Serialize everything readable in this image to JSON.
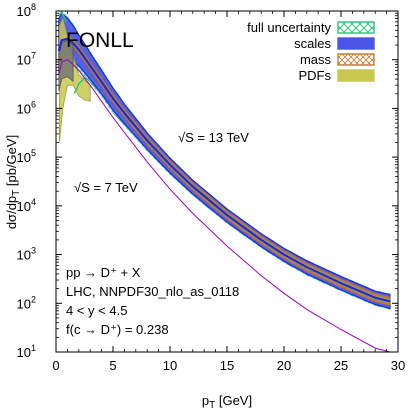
{
  "chart_data": {
    "type": "line",
    "title": "FONLL",
    "xlabel": "p_T [GeV]",
    "ylabel": "dσ/dp_T [pb/GeV]",
    "xlim": [
      0,
      30
    ],
    "ylim": [
      10,
      100000000
    ],
    "yscale": "log",
    "grid": false,
    "legend_position": "top-right",
    "x_ticks": [
      "0",
      "5",
      "10",
      "15",
      "20",
      "25",
      "30"
    ],
    "y_ticks": [
      {
        "base": "10",
        "exp": "1"
      },
      {
        "base": "10",
        "exp": "2"
      },
      {
        "base": "10",
        "exp": "3"
      },
      {
        "base": "10",
        "exp": "4"
      },
      {
        "base": "10",
        "exp": "5"
      },
      {
        "base": "10",
        "exp": "6"
      },
      {
        "base": "10",
        "exp": "7"
      },
      {
        "base": "10",
        "exp": "8"
      }
    ],
    "legend": [
      {
        "label": "full uncertainty",
        "color": "#2ec27e",
        "pattern": "cross"
      },
      {
        "label": "scales",
        "color": "#4a55e8",
        "pattern": "solid"
      },
      {
        "label": "mass",
        "color": "#c87a38",
        "pattern": "hatch"
      },
      {
        "label": "PDFs",
        "color": "#c8c850",
        "pattern": "solid"
      }
    ],
    "annotations": {
      "energy_13": "√S = 13 TeV",
      "energy_7": "√S = 7 TeV",
      "process": "pp → D⁺ + X",
      "pdf_set": "LHC, NNPDF30_nlo_as_0118",
      "rapidity": "4 < y < 4.5",
      "fragmentation": "f(c → D⁺) = 0.238"
    },
    "central_13TeV": {
      "x": [
        0.25,
        0.5,
        1,
        1.5,
        2,
        2.5,
        3,
        4,
        5,
        6,
        8,
        10,
        12,
        15,
        18,
        20,
        22,
        25,
        28,
        29.3
      ],
      "y": [
        15000000,
        25000000,
        27000000,
        22000000,
        16000000,
        11000000,
        7500000,
        3500000,
        1600000,
        800000,
        220000,
        70000,
        25000,
        6500,
        2000,
        1000,
        550,
        260,
        130,
        110
      ]
    },
    "band_13TeV_full": {
      "x": [
        0.25,
        0.5,
        1,
        1.5,
        2,
        2.5,
        3,
        4,
        5,
        6,
        8,
        10,
        12,
        15,
        18,
        20,
        22,
        25,
        28,
        29.3
      ],
      "upper": [
        80000000,
        100000000,
        80000000,
        55000000,
        35000000,
        23000000,
        15000000,
        6500000,
        2800000,
        1300000,
        330000,
        100000,
        35000,
        9000,
        2800,
        1400,
        780,
        370,
        185,
        158
      ],
      "lower": [
        3000000,
        5000000,
        7000000,
        7000000,
        6000000,
        4500000,
        3300000,
        1700000,
        800000,
        430000,
        130000,
        43000,
        16000,
        4300,
        1350,
        680,
        370,
        175,
        88,
        73
      ]
    },
    "central_7TeV": {
      "x": [
        0.25,
        0.5,
        1,
        1.5,
        2,
        2.5,
        3,
        4,
        5,
        6,
        8,
        10,
        12,
        15,
        18,
        20,
        22,
        25,
        28,
        29.3
      ],
      "y": [
        5000000,
        9000000,
        10000000,
        8000000,
        6000000,
        4200000,
        3000000,
        1400000,
        650000,
        320000,
        80000,
        22000,
        7000,
        1500,
        370,
        160,
        75,
        29,
        12,
        10
      ]
    },
    "band_7TeV_full": {
      "x": [
        0.3,
        0.6,
        1,
        1.5,
        2,
        2.5,
        3
      ],
      "upper": [
        50000000,
        70000000,
        30000000,
        12000000,
        5000000,
        3800000,
        3000000
      ],
      "lower": [
        200000,
        1000000,
        3000000,
        3000000,
        1800000,
        1500000,
        1400000
      ]
    }
  }
}
